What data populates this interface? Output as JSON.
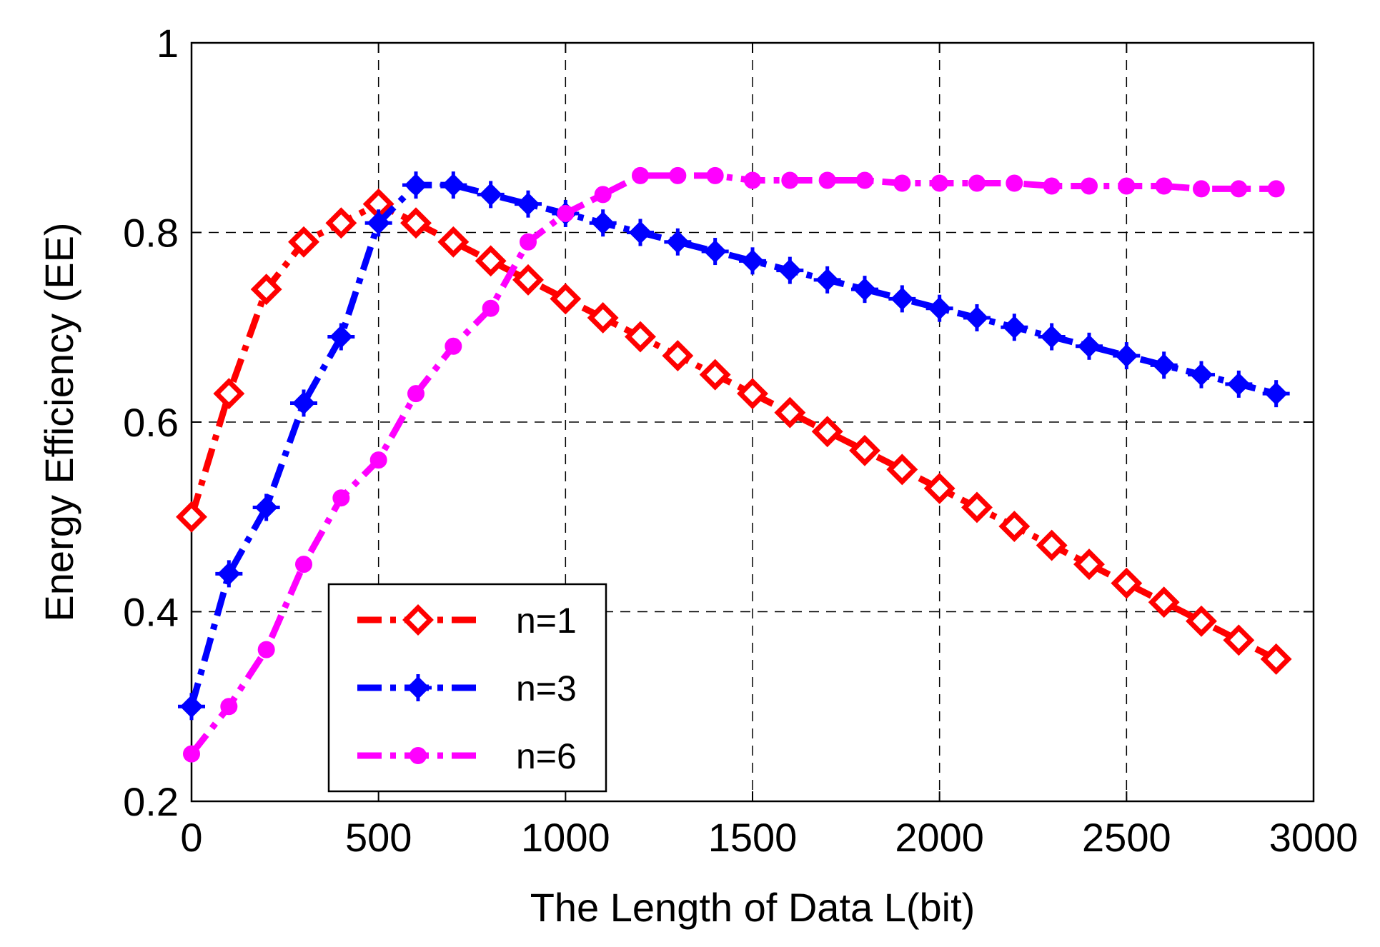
{
  "chart_data": {
    "type": "line",
    "title": "",
    "xlabel": "The Length of Data L(bit)",
    "ylabel": "Energy Efficiency (EE)",
    "xlim": [
      0,
      3000
    ],
    "ylim": [
      0.2,
      1.0
    ],
    "xticks": [
      0,
      500,
      1000,
      1500,
      2000,
      2500,
      3000
    ],
    "yticks": [
      0.2,
      0.4,
      0.6,
      0.8,
      1.0
    ],
    "xtick_labels": [
      "0",
      "500",
      "1000",
      "1500",
      "2000",
      "2500",
      "3000"
    ],
    "ytick_labels": [
      "0.2",
      "0.4",
      "0.6",
      "0.8",
      "1"
    ],
    "grid": true,
    "legend_position": "bottom-left",
    "x": [
      0,
      100,
      200,
      300,
      400,
      500,
      600,
      700,
      800,
      900,
      1000,
      1100,
      1200,
      1300,
      1400,
      1500,
      1600,
      1700,
      1800,
      1900,
      2000,
      2100,
      2200,
      2300,
      2400,
      2500,
      2600,
      2700,
      2800,
      2900
    ],
    "series": [
      {
        "name": "n=1",
        "color": "#ff0000",
        "marker": "diamond",
        "values": [
          0.5,
          0.63,
          0.74,
          0.79,
          0.81,
          0.83,
          0.81,
          0.79,
          0.77,
          0.75,
          0.73,
          0.71,
          0.69,
          0.67,
          0.65,
          0.63,
          0.61,
          0.59,
          0.57,
          0.55,
          0.53,
          0.51,
          0.49,
          0.47,
          0.45,
          0.43,
          0.41,
          0.39,
          0.37,
          0.35
        ]
      },
      {
        "name": "n=3",
        "color": "#0000ff",
        "marker": "filled-diamond-plus",
        "values": [
          0.3,
          0.44,
          0.51,
          0.62,
          0.69,
          0.81,
          0.85,
          0.85,
          0.84,
          0.83,
          0.82,
          0.81,
          0.8,
          0.79,
          0.78,
          0.77,
          0.76,
          0.75,
          0.74,
          0.73,
          0.72,
          0.71,
          0.7,
          0.69,
          0.68,
          0.67,
          0.66,
          0.65,
          0.64,
          0.63
        ]
      },
      {
        "name": "n=6",
        "color": "#ff00ff",
        "marker": "circle",
        "values": [
          0.25,
          0.3,
          0.36,
          0.45,
          0.52,
          0.56,
          0.63,
          0.68,
          0.72,
          0.79,
          0.82,
          0.84,
          0.86,
          0.86,
          0.86,
          0.855,
          0.855,
          0.855,
          0.855,
          0.852,
          0.852,
          0.852,
          0.852,
          0.849,
          0.849,
          0.849,
          0.849,
          0.846,
          0.846,
          0.846
        ]
      }
    ]
  }
}
